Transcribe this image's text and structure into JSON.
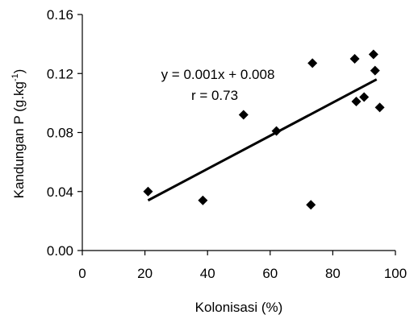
{
  "chart_data": {
    "type": "scatter",
    "xlabel": "Kolonisasi (%)",
    "ylabel": {
      "main": "Kandungan P (g.kg",
      "sup": "-1",
      "close": ")"
    },
    "xlim": [
      0,
      100
    ],
    "ylim": [
      0,
      0.16
    ],
    "x_ticks": [
      0,
      20,
      40,
      60,
      80,
      100
    ],
    "y_ticks": [
      0,
      0.04,
      0.08,
      0.12,
      0.16
    ],
    "x_tick_labels": [
      "0",
      "20",
      "40",
      "60",
      "80",
      "100"
    ],
    "y_tick_labels": [
      "0.00",
      "0.04",
      "0.08",
      "0.12",
      "0.16"
    ],
    "grid": false,
    "marker": "diamond",
    "points": [
      {
        "x": 21,
        "y": 0.04
      },
      {
        "x": 38.5,
        "y": 0.034
      },
      {
        "x": 51.5,
        "y": 0.092
      },
      {
        "x": 62,
        "y": 0.081
      },
      {
        "x": 73,
        "y": 0.031
      },
      {
        "x": 73.5,
        "y": 0.127
      },
      {
        "x": 87,
        "y": 0.13
      },
      {
        "x": 87.5,
        "y": 0.101
      },
      {
        "x": 90,
        "y": 0.104
      },
      {
        "x": 93,
        "y": 0.133
      },
      {
        "x": 93.5,
        "y": 0.122
      },
      {
        "x": 95,
        "y": 0.097
      }
    ],
    "trendline": {
      "x": [
        21,
        94
      ],
      "y": [
        0.034,
        0.116
      ]
    },
    "annotations": {
      "equation": "y = 0.001x + 0.008",
      "r": "r = 0.73"
    }
  }
}
